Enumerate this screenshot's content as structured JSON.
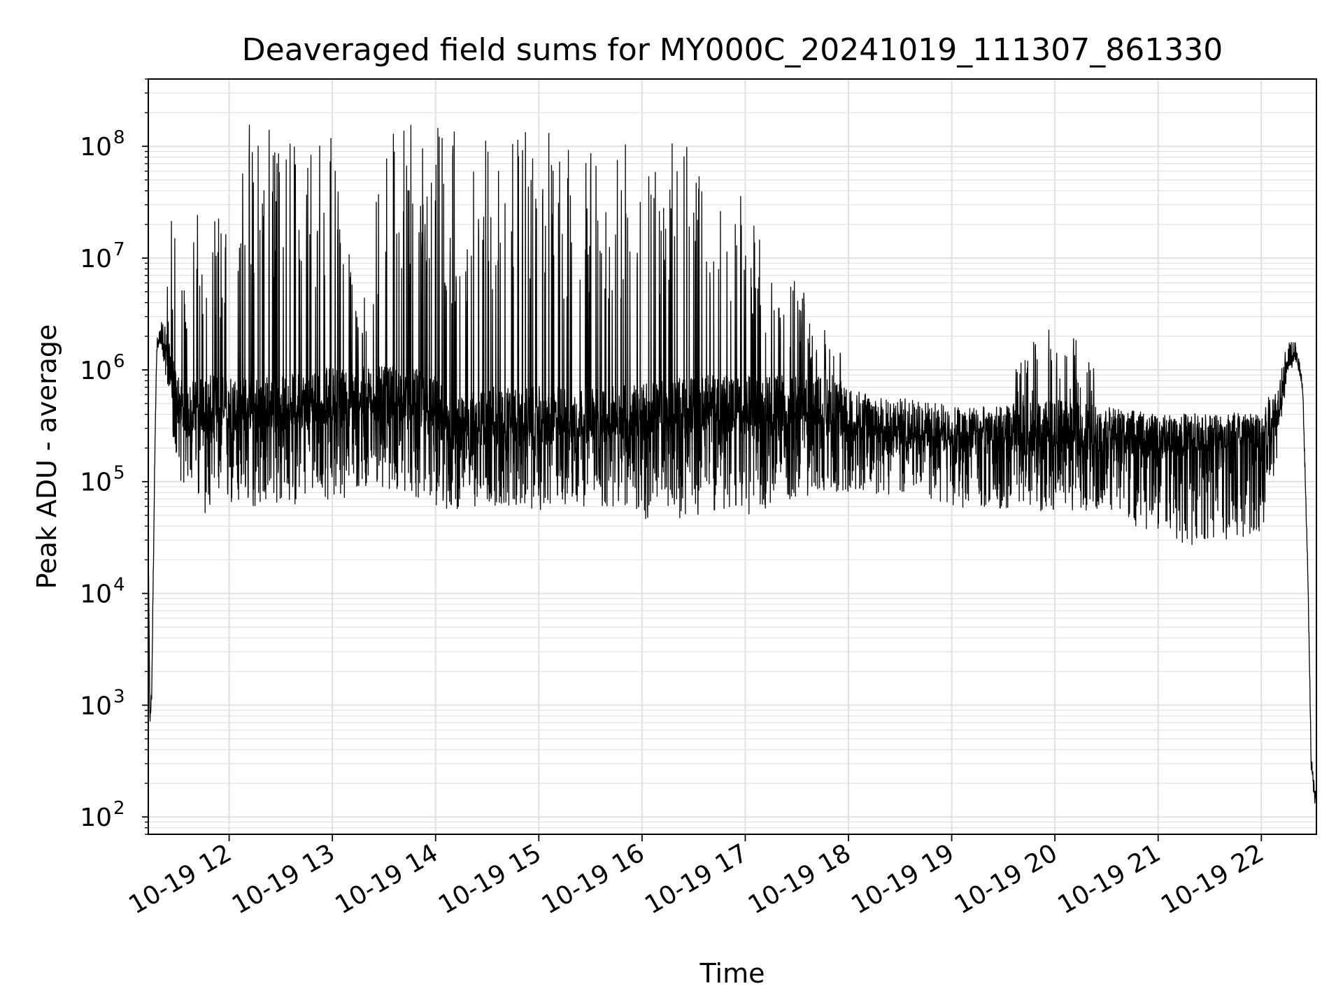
{
  "chart_data": {
    "type": "line",
    "title": "Deaveraged field sums for MY000C_20241019_111307_861330",
    "xlabel": "Time",
    "ylabel": "Peak ADU - average",
    "yscale": "log",
    "ylim": [
      70,
      400000000
    ],
    "xlim": [
      "2024-10-19 11:13",
      "2024-10-19 22:32"
    ],
    "grid": true,
    "line_color": "#000000",
    "grid_color": "#e0e0e0",
    "x_tick_labels": [
      "10-19 12",
      "10-19 13",
      "10-19 14",
      "10-19 15",
      "10-19 16",
      "10-19 17",
      "10-19 18",
      "10-19 19",
      "10-19 20",
      "10-19 21",
      "10-19 22"
    ],
    "x_tick_times": [
      "2024-10-19 12:00",
      "2024-10-19 13:00",
      "2024-10-19 14:00",
      "2024-10-19 15:00",
      "2024-10-19 16:00",
      "2024-10-19 17:00",
      "2024-10-19 18:00",
      "2024-10-19 19:00",
      "2024-10-19 20:00",
      "2024-10-19 21:00",
      "2024-10-19 22:00"
    ],
    "y_ticks": [
      {
        "base": "10",
        "exp": "2",
        "value": 100
      },
      {
        "base": "10",
        "exp": "3",
        "value": 1000
      },
      {
        "base": "10",
        "exp": "4",
        "value": 10000
      },
      {
        "base": "10",
        "exp": "5",
        "value": 100000
      },
      {
        "base": "10",
        "exp": "6",
        "value": 1000000
      },
      {
        "base": "10",
        "exp": "7",
        "value": 10000000
      },
      {
        "base": "10",
        "exp": "8",
        "value": 100000000
      }
    ],
    "series": [
      {
        "x": [
          "2024-10-19 11:13",
          "2024-10-19 11:14",
          "2024-10-19 11:15",
          "2024-10-19 11:16",
          "2024-10-19 11:17",
          "2024-10-19 11:18",
          "2024-10-19 11:20",
          "2024-10-19 11:22",
          "2024-10-19 11:25",
          "2024-10-19 11:28",
          "2024-10-19 11:32",
          "2024-10-19 11:36",
          "2024-10-19 11:40",
          "2024-10-19 11:45",
          "2024-10-19 11:50",
          "2024-10-19 11:55",
          "2024-10-19 12:00",
          "2024-10-19 12:10",
          "2024-10-19 12:20",
          "2024-10-19 12:30",
          "2024-10-19 12:45",
          "2024-10-19 13:00",
          "2024-10-19 13:15",
          "2024-10-19 13:30",
          "2024-10-19 13:45",
          "2024-10-19 14:00",
          "2024-10-19 14:10",
          "2024-10-19 14:20",
          "2024-10-19 14:35",
          "2024-10-19 14:50",
          "2024-10-19 15:00",
          "2024-10-19 15:15",
          "2024-10-19 15:30",
          "2024-10-19 15:45",
          "2024-10-19 16:00",
          "2024-10-19 16:15",
          "2024-10-19 16:30",
          "2024-10-19 16:45",
          "2024-10-19 17:00",
          "2024-10-19 17:15",
          "2024-10-19 17:30",
          "2024-10-19 17:45",
          "2024-10-19 18:00",
          "2024-10-19 18:30",
          "2024-10-19 19:00",
          "2024-10-19 19:30",
          "2024-10-19 20:00",
          "2024-10-19 20:30",
          "2024-10-19 21:00",
          "2024-10-19 21:30",
          "2024-10-19 22:00",
          "2024-10-19 22:10",
          "2024-10-19 22:15",
          "2024-10-19 22:20",
          "2024-10-19 22:24",
          "2024-10-19 22:27",
          "2024-10-19 22:29",
          "2024-10-19 22:31"
        ],
        "y_typical": [
          25000,
          700,
          1300,
          20000,
          300000,
          1600000,
          1800000,
          1800000,
          1500000,
          600000,
          500000,
          400000,
          500000,
          500000,
          500000,
          500000,
          500000,
          500000,
          500000,
          500000,
          550000,
          600000,
          600000,
          600000,
          600000,
          500000,
          300000,
          350000,
          400000,
          400000,
          400000,
          400000,
          400000,
          400000,
          450000,
          450000,
          500000,
          500000,
          500000,
          500000,
          500000,
          500000,
          400000,
          350000,
          300000,
          300000,
          300000,
          300000,
          250000,
          280000,
          300000,
          500000,
          1200000,
          1500000,
          700000,
          15000,
          300,
          150
        ],
        "y_low": [
          25000,
          700,
          1300,
          20000,
          300000,
          1600000,
          1800000,
          1000000,
          600000,
          200000,
          100000,
          90000,
          60000,
          50000,
          50000,
          55000,
          55000,
          55000,
          60000,
          60000,
          65000,
          70000,
          70000,
          80000,
          80000,
          50000,
          55000,
          60000,
          60000,
          55000,
          55000,
          60000,
          60000,
          55000,
          45000,
          45000,
          50000,
          55000,
          50000,
          60000,
          70000,
          80000,
          80000,
          75000,
          60000,
          55000,
          55000,
          55000,
          30000,
          25000,
          35000,
          150000,
          1000000,
          1200000,
          700000,
          15000,
          300,
          150
        ],
        "y_high": [
          25000,
          700,
          1300,
          20000,
          300000,
          1600000,
          4000000,
          5000000,
          20000000,
          30000000,
          10000000,
          5000000,
          30000000,
          20000000,
          20000000,
          30000000,
          20000000,
          180000000,
          170000000,
          170000000,
          160000000,
          150000000,
          3000000,
          160000000,
          160000000,
          160000000,
          170000000,
          160000000,
          150000000,
          150000000,
          150000000,
          110000000,
          150000000,
          90000000,
          150000000,
          160000000,
          100000000,
          70000000,
          60000000,
          10000000,
          6000000,
          3000000,
          1500000,
          1200000,
          1000000,
          900000,
          3000000,
          900000,
          800000,
          700000,
          800000,
          1500000,
          3000000,
          1600000,
          700000,
          15000,
          300,
          150
        ]
      }
    ]
  }
}
